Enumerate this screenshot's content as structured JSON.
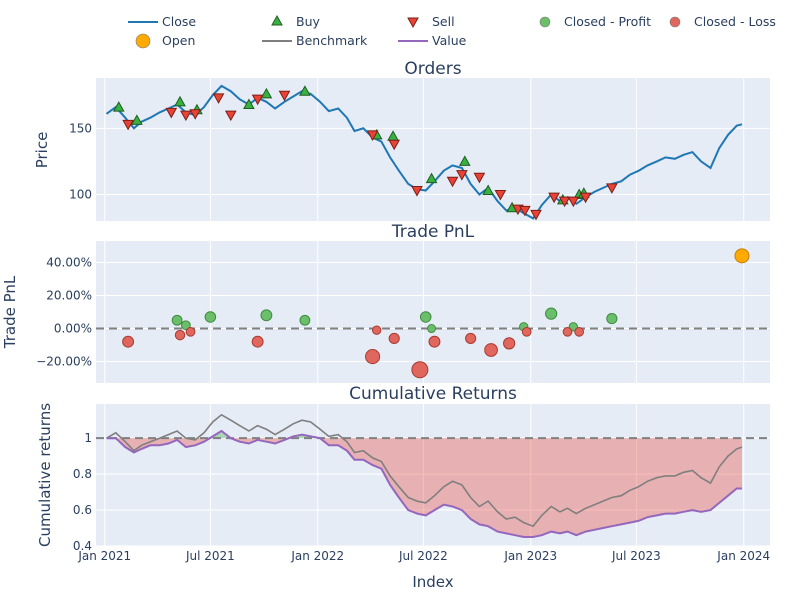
{
  "legend": {
    "items": [
      {
        "key": "close",
        "label": "Close",
        "type": "line",
        "color": "#1f77b4"
      },
      {
        "key": "buy",
        "label": "Buy",
        "type": "triangle-up",
        "color": "#37b13f"
      },
      {
        "key": "sell",
        "label": "Sell",
        "type": "triangle-down",
        "color": "#ea4335"
      },
      {
        "key": "closed_profit",
        "label": "Closed - Profit",
        "type": "circle",
        "color": "#6bbf6b"
      },
      {
        "key": "closed_loss",
        "label": "Closed - Loss",
        "type": "circle",
        "color": "#e0675d"
      },
      {
        "key": "open",
        "label": "Open",
        "type": "circle",
        "color": "#ffaa00"
      },
      {
        "key": "benchmark",
        "label": "Benchmark",
        "type": "line",
        "color": "#7f7f7f"
      },
      {
        "key": "value",
        "label": "Value",
        "type": "line",
        "color": "#9467bd"
      }
    ]
  },
  "xaxis": {
    "title": "Index",
    "ticks": [
      {
        "date": "2021-01-01",
        "label": "Jan 2021"
      },
      {
        "date": "2021-07-01",
        "label": "Jul 2021"
      },
      {
        "date": "2022-01-01",
        "label": "Jan 2022"
      },
      {
        "date": "2022-07-01",
        "label": "Jul 2022"
      },
      {
        "date": "2023-01-01",
        "label": "Jan 2023"
      },
      {
        "date": "2023-07-01",
        "label": "Jul 2023"
      },
      {
        "date": "2024-01-01",
        "label": "Jan 2024"
      }
    ],
    "range": [
      "2020-12-17",
      "2024-02-15"
    ]
  },
  "chart_data": [
    {
      "type": "line",
      "title": "Orders",
      "ylabel": "Price",
      "ylim": [
        80,
        188
      ],
      "yticks": [
        100,
        150
      ],
      "close": {
        "name": "Close",
        "x": [
          "2021-01-04",
          "2021-01-20",
          "2021-02-05",
          "2021-02-20",
          "2021-03-05",
          "2021-03-20",
          "2021-04-05",
          "2021-04-20",
          "2021-05-05",
          "2021-05-20",
          "2021-06-05",
          "2021-06-20",
          "2021-07-05",
          "2021-07-20",
          "2021-08-05",
          "2021-08-20",
          "2021-09-05",
          "2021-09-20",
          "2021-10-05",
          "2021-10-20",
          "2021-11-05",
          "2021-11-20",
          "2021-12-05",
          "2021-12-20",
          "2022-01-05",
          "2022-01-20",
          "2022-02-05",
          "2022-02-20",
          "2022-03-05",
          "2022-03-20",
          "2022-04-05",
          "2022-04-20",
          "2022-05-05",
          "2022-05-20",
          "2022-06-05",
          "2022-06-20",
          "2022-07-05",
          "2022-07-20",
          "2022-08-05",
          "2022-08-20",
          "2022-09-05",
          "2022-09-20",
          "2022-10-05",
          "2022-10-20",
          "2022-11-05",
          "2022-11-20",
          "2022-12-05",
          "2022-12-20",
          "2023-01-05",
          "2023-01-20",
          "2023-02-05",
          "2023-02-20",
          "2023-03-05",
          "2023-03-20",
          "2023-04-05",
          "2023-04-20",
          "2023-05-05",
          "2023-05-20",
          "2023-06-05",
          "2023-06-20",
          "2023-07-05",
          "2023-07-20",
          "2023-08-05",
          "2023-08-20",
          "2023-09-05",
          "2023-09-20",
          "2023-10-05",
          "2023-10-20",
          "2023-11-05",
          "2023-11-20",
          "2023-12-05",
          "2023-12-20",
          "2023-12-29"
        ],
        "y": [
          161,
          166,
          158,
          150,
          155,
          158,
          162,
          165,
          168,
          162,
          160,
          166,
          175,
          182,
          178,
          172,
          168,
          173,
          170,
          165,
          170,
          174,
          178,
          176,
          170,
          163,
          165,
          158,
          148,
          150,
          143,
          140,
          128,
          118,
          108,
          104,
          103,
          110,
          118,
          122,
          120,
          108,
          100,
          105,
          95,
          88,
          90,
          86,
          82,
          92,
          100,
          95,
          98,
          93,
          98,
          102,
          105,
          108,
          110,
          115,
          118,
          122,
          125,
          128,
          127,
          130,
          132,
          125,
          120,
          135,
          145,
          152,
          153
        ]
      },
      "buys": {
        "name": "Buy",
        "x": [
          "2021-01-25",
          "2021-02-25",
          "2021-05-10",
          "2021-06-08",
          "2021-09-05",
          "2021-10-05",
          "2021-12-10",
          "2022-04-12",
          "2022-05-10",
          "2022-07-15",
          "2022-09-10",
          "2022-10-20",
          "2022-11-30",
          "2023-02-25",
          "2023-03-25",
          "2023-04-02"
        ],
        "y": [
          166,
          156,
          170,
          164,
          168,
          176,
          178,
          145,
          144,
          112,
          125,
          103,
          90,
          96,
          100,
          101
        ]
      },
      "sells": {
        "name": "Sell",
        "x": [
          "2021-02-10",
          "2021-04-25",
          "2021-05-20",
          "2021-06-05",
          "2021-07-15",
          "2021-08-05",
          "2021-09-20",
          "2021-11-05",
          "2022-04-05",
          "2022-05-12",
          "2022-06-20",
          "2022-08-20",
          "2022-09-05",
          "2022-10-05",
          "2022-11-10",
          "2022-12-10",
          "2022-12-22",
          "2023-01-10",
          "2023-02-10",
          "2023-02-28",
          "2023-03-15",
          "2023-04-05",
          "2023-05-20"
        ],
        "y": [
          153,
          162,
          160,
          161,
          173,
          160,
          172,
          175,
          145,
          138,
          103,
          110,
          115,
          113,
          100,
          89,
          88,
          85,
          98,
          95,
          95,
          98,
          105
        ]
      }
    },
    {
      "type": "scatter",
      "title": "Trade PnL",
      "ylabel": "Trade PnL",
      "ylim": [
        -0.33,
        0.53
      ],
      "yticks": [
        -0.2,
        0,
        0.2,
        0.4
      ],
      "ytick_labels": [
        "−20.00%",
        "0.00%",
        "20.00%",
        "40.00%"
      ],
      "zero_line": 0,
      "profit": {
        "name": "Closed - Profit",
        "x": [
          "2021-05-05",
          "2021-05-20",
          "2021-07-01",
          "2021-10-05",
          "2021-12-10",
          "2022-07-05",
          "2022-07-15",
          "2022-12-20",
          "2023-02-05",
          "2023-03-15",
          "2023-05-20"
        ],
        "y": [
          0.05,
          0.02,
          0.07,
          0.08,
          0.05,
          0.07,
          0.0,
          0.01,
          0.09,
          0.01,
          0.06
        ]
      },
      "loss": {
        "name": "Closed - Loss",
        "x": [
          "2021-02-10",
          "2021-05-10",
          "2021-05-28",
          "2021-09-20",
          "2022-04-05",
          "2022-04-12",
          "2022-05-12",
          "2022-06-25",
          "2022-07-20",
          "2022-09-20",
          "2022-10-25",
          "2022-11-25",
          "2022-12-25",
          "2023-03-05",
          "2023-03-25"
        ],
        "y": [
          -0.08,
          -0.04,
          -0.02,
          -0.08,
          -0.17,
          -0.01,
          -0.06,
          -0.25,
          -0.08,
          -0.06,
          -0.13,
          -0.09,
          -0.02,
          -0.02,
          -0.02
        ]
      },
      "open": {
        "name": "Open",
        "x": [
          "2023-12-29"
        ],
        "y": [
          0.44
        ]
      }
    },
    {
      "type": "area",
      "title": "Cumulative Returns",
      "ylabel": "Cumulative returns",
      "ylim": [
        0.4,
        1.19
      ],
      "yticks": [
        0.4,
        0.6,
        0.8,
        1
      ],
      "ytick_labels": [
        "0.4",
        "0.6",
        "0.8",
        "1"
      ],
      "baseline": 1,
      "benchmark": {
        "name": "Benchmark",
        "x": [
          "2021-01-04",
          "2021-01-20",
          "2021-02-05",
          "2021-02-20",
          "2021-03-05",
          "2021-03-20",
          "2021-04-05",
          "2021-04-20",
          "2021-05-05",
          "2021-05-20",
          "2021-06-05",
          "2021-06-20",
          "2021-07-05",
          "2021-07-20",
          "2021-08-05",
          "2021-08-20",
          "2021-09-05",
          "2021-09-20",
          "2021-10-05",
          "2021-10-20",
          "2021-11-05",
          "2021-11-20",
          "2021-12-05",
          "2021-12-20",
          "2022-01-05",
          "2022-01-20",
          "2022-02-05",
          "2022-02-20",
          "2022-03-05",
          "2022-03-20",
          "2022-04-05",
          "2022-04-20",
          "2022-05-05",
          "2022-05-20",
          "2022-06-05",
          "2022-06-20",
          "2022-07-05",
          "2022-07-20",
          "2022-08-05",
          "2022-08-20",
          "2022-09-05",
          "2022-09-20",
          "2022-10-05",
          "2022-10-20",
          "2022-11-05",
          "2022-11-20",
          "2022-12-05",
          "2022-12-20",
          "2023-01-05",
          "2023-01-20",
          "2023-02-05",
          "2023-02-20",
          "2023-03-05",
          "2023-03-20",
          "2023-04-05",
          "2023-04-20",
          "2023-05-05",
          "2023-05-20",
          "2023-06-05",
          "2023-06-20",
          "2023-07-05",
          "2023-07-20",
          "2023-08-05",
          "2023-08-20",
          "2023-09-05",
          "2023-09-20",
          "2023-10-05",
          "2023-10-20",
          "2023-11-05",
          "2023-11-20",
          "2023-12-05",
          "2023-12-20",
          "2023-12-29"
        ],
        "y": [
          1.0,
          1.03,
          0.98,
          0.93,
          0.96,
          0.98,
          1.0,
          1.02,
          1.04,
          1.0,
          0.99,
          1.03,
          1.09,
          1.13,
          1.1,
          1.07,
          1.04,
          1.07,
          1.05,
          1.02,
          1.05,
          1.08,
          1.1,
          1.09,
          1.05,
          1.01,
          1.02,
          0.98,
          0.92,
          0.93,
          0.89,
          0.87,
          0.79,
          0.73,
          0.67,
          0.65,
          0.64,
          0.68,
          0.73,
          0.76,
          0.74,
          0.67,
          0.62,
          0.65,
          0.59,
          0.55,
          0.56,
          0.53,
          0.51,
          0.57,
          0.62,
          0.59,
          0.61,
          0.58,
          0.61,
          0.63,
          0.65,
          0.67,
          0.68,
          0.71,
          0.73,
          0.76,
          0.78,
          0.79,
          0.79,
          0.81,
          0.82,
          0.78,
          0.75,
          0.84,
          0.9,
          0.94,
          0.95
        ]
      },
      "value": {
        "name": "Value",
        "x": [
          "2021-01-04",
          "2021-01-20",
          "2021-02-05",
          "2021-02-20",
          "2021-03-05",
          "2021-03-20",
          "2021-04-05",
          "2021-04-20",
          "2021-05-05",
          "2021-05-20",
          "2021-06-05",
          "2021-06-20",
          "2021-07-05",
          "2021-07-20",
          "2021-08-05",
          "2021-08-20",
          "2021-09-05",
          "2021-09-20",
          "2021-10-05",
          "2021-10-20",
          "2021-11-05",
          "2021-11-20",
          "2021-12-05",
          "2021-12-20",
          "2022-01-05",
          "2022-01-20",
          "2022-02-05",
          "2022-02-20",
          "2022-03-05",
          "2022-03-20",
          "2022-04-05",
          "2022-04-20",
          "2022-05-05",
          "2022-05-20",
          "2022-06-05",
          "2022-06-20",
          "2022-07-05",
          "2022-07-20",
          "2022-08-05",
          "2022-08-20",
          "2022-09-05",
          "2022-09-20",
          "2022-10-05",
          "2022-10-20",
          "2022-11-05",
          "2022-11-20",
          "2022-12-05",
          "2022-12-20",
          "2023-01-05",
          "2023-01-20",
          "2023-02-05",
          "2023-02-20",
          "2023-03-05",
          "2023-03-20",
          "2023-04-05",
          "2023-04-20",
          "2023-05-05",
          "2023-05-20",
          "2023-06-05",
          "2023-06-20",
          "2023-07-05",
          "2023-07-20",
          "2023-08-05",
          "2023-08-20",
          "2023-09-05",
          "2023-09-20",
          "2023-10-05",
          "2023-10-20",
          "2023-11-05",
          "2023-11-20",
          "2023-12-05",
          "2023-12-20",
          "2023-12-29"
        ],
        "y": [
          1.0,
          1.0,
          0.95,
          0.92,
          0.94,
          0.96,
          0.96,
          0.97,
          0.99,
          0.95,
          0.96,
          0.98,
          1.01,
          1.04,
          1.0,
          0.98,
          0.97,
          0.99,
          0.98,
          0.97,
          0.99,
          1.01,
          1.02,
          1.01,
          1.0,
          0.96,
          0.96,
          0.93,
          0.88,
          0.88,
          0.85,
          0.83,
          0.74,
          0.67,
          0.6,
          0.58,
          0.57,
          0.6,
          0.63,
          0.62,
          0.6,
          0.55,
          0.52,
          0.51,
          0.48,
          0.47,
          0.46,
          0.45,
          0.45,
          0.46,
          0.48,
          0.47,
          0.48,
          0.46,
          0.48,
          0.49,
          0.5,
          0.51,
          0.52,
          0.53,
          0.54,
          0.56,
          0.57,
          0.58,
          0.58,
          0.59,
          0.6,
          0.59,
          0.6,
          0.64,
          0.68,
          0.72,
          0.72
        ]
      }
    }
  ]
}
